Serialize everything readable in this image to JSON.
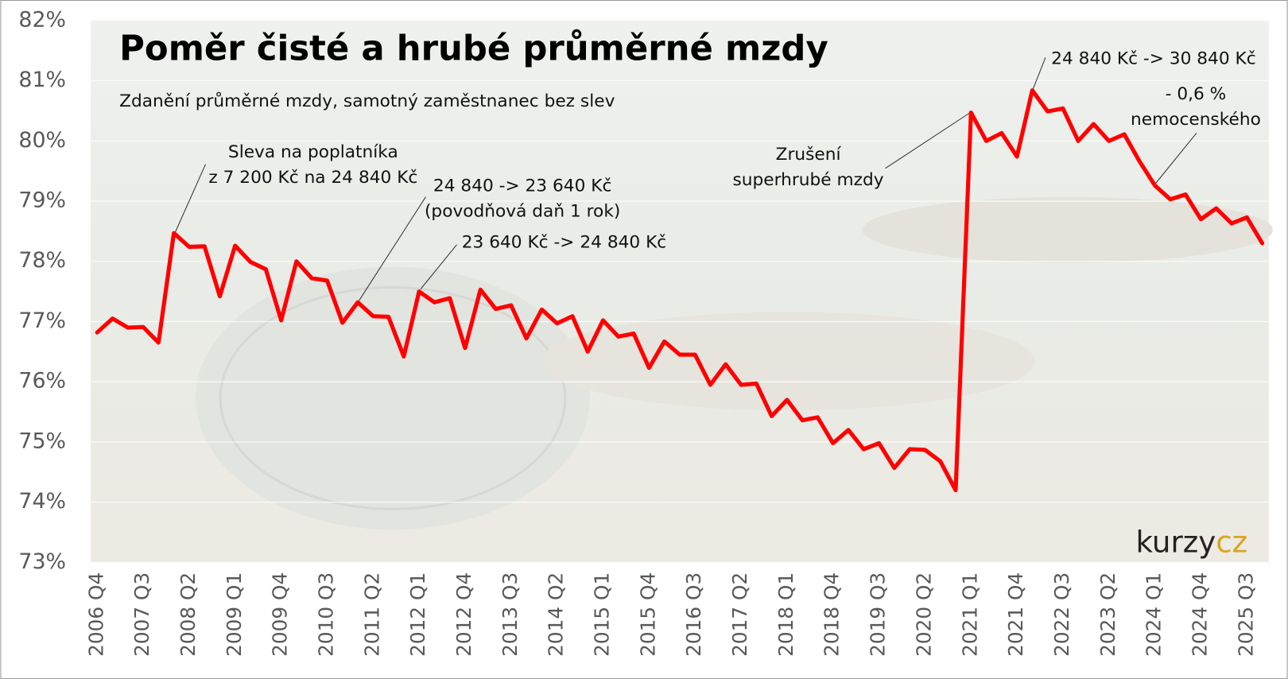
{
  "chart_data": {
    "type": "line",
    "title": "Poměr čisté a hrubé průměrné mzdy",
    "subtitle": "Zdanění průměrné mzdy, samotný zaměstnanec bez slev",
    "categories": [
      "2006 Q4",
      null,
      null,
      "2007 Q3",
      null,
      null,
      "2008 Q2",
      null,
      null,
      "2009 Q1",
      null,
      null,
      "2009 Q4",
      null,
      null,
      "2010 Q3",
      null,
      null,
      "2011 Q2",
      null,
      null,
      "2012 Q1",
      null,
      null,
      "2012 Q4",
      null,
      null,
      "2013 Q3",
      null,
      null,
      "2014 Q2",
      null,
      null,
      "2015 Q1",
      null,
      null,
      "2015 Q4",
      null,
      null,
      "2016 Q3",
      null,
      null,
      "2017 Q2",
      null,
      null,
      "2018 Q1",
      null,
      null,
      "2018 Q4",
      null,
      null,
      "2019 Q3",
      null,
      null,
      "2020 Q2",
      null,
      null,
      "2021 Q1",
      null,
      null,
      "2021 Q4",
      null,
      null,
      "2022 Q3",
      null,
      null,
      "2023 Q2",
      null,
      null,
      "2024 Q1",
      null,
      null,
      "2024 Q4",
      null,
      null,
      "2025 Q3",
      null
    ],
    "values": [
      76.82,
      77.05,
      76.9,
      76.91,
      76.65,
      78.47,
      78.24,
      78.25,
      77.42,
      78.26,
      77.99,
      77.87,
      77.02,
      78.0,
      77.72,
      77.68,
      76.98,
      77.32,
      77.09,
      77.08,
      76.42,
      77.5,
      77.32,
      77.39,
      76.56,
      77.53,
      77.21,
      77.27,
      76.72,
      77.2,
      76.97,
      77.09,
      76.5,
      77.02,
      76.75,
      76.8,
      76.23,
      76.67,
      76.45,
      76.45,
      75.95,
      76.29,
      75.95,
      75.97,
      75.43,
      75.7,
      75.36,
      75.41,
      74.98,
      75.2,
      74.88,
      74.98,
      74.57,
      74.88,
      74.87,
      74.68,
      74.2,
      80.47,
      80.0,
      80.13,
      79.74,
      80.84,
      80.49,
      80.54,
      80.0,
      80.28,
      80.0,
      80.11,
      79.66,
      79.26,
      79.03,
      79.11,
      78.7,
      78.88,
      78.63,
      78.73,
      78.3
    ],
    "color": "#ff0000",
    "ylim": [
      73,
      82
    ],
    "yticks": [
      {
        "value": 73,
        "label": "73%"
      },
      {
        "value": 74,
        "label": "74%"
      },
      {
        "value": 75,
        "label": "75%"
      },
      {
        "value": 76,
        "label": "76%"
      },
      {
        "value": 77,
        "label": "77%"
      },
      {
        "value": 78,
        "label": "78%"
      },
      {
        "value": 79,
        "label": "79%"
      },
      {
        "value": 80,
        "label": "80%"
      },
      {
        "value": 81,
        "label": "81%"
      },
      {
        "value": 82,
        "label": "82%"
      }
    ],
    "grid": true,
    "annotations": [
      {
        "lines": [
          "Sleva na poplatníka",
          "z 7 200 Kč na 24 840 Kč"
        ]
      },
      {
        "lines": [
          "24 840 -> 23 640 Kč",
          "(povodňová daň 1 rok)"
        ]
      },
      {
        "lines": [
          "23 640 Kč -> 24 840 Kč"
        ]
      },
      {
        "lines": [
          "Zrušení",
          "superhrubé mzdy"
        ]
      },
      {
        "lines": [
          "24 840 Kč -> 30 840 Kč"
        ]
      },
      {
        "lines": [
          "- 0,6 %",
          "nemocenského"
        ]
      }
    ],
    "logo": [
      "kurzy",
      "cz"
    ]
  }
}
